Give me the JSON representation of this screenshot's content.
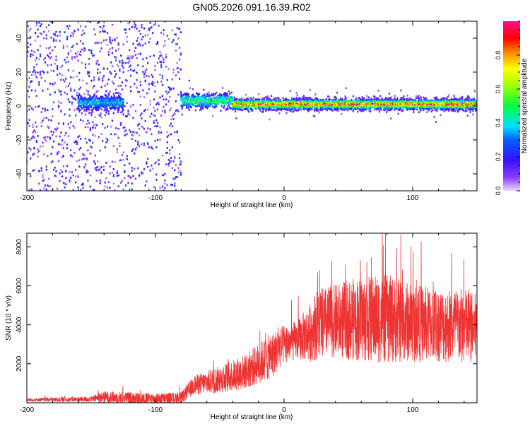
{
  "title": "GN05.2026.091.16.39.R02",
  "chart_data": [
    {
      "type": "heatmap",
      "name": "spectrogram",
      "xlabel": "Height of straight line (km)",
      "ylabel": "Frequency (Hz)",
      "xlim": [
        -200,
        150
      ],
      "ylim": [
        -50,
        50
      ],
      "xticks": [
        -200,
        -100,
        0,
        100
      ],
      "yticks": [
        -40,
        -20,
        0,
        20,
        40
      ],
      "colorbar": {
        "label": "Normalized spectral amplitude",
        "range": [
          0.0,
          1.0
        ],
        "ticks": [
          "0.0",
          "0.2",
          "0.4",
          "0.6",
          "0.8"
        ]
      },
      "regions": [
        {
          "x_range": [
            -200,
            -80
          ],
          "description": "broadband noise",
          "freq_range": [
            -50,
            50
          ],
          "amplitude": 0.25
        },
        {
          "x_range": [
            -160,
            -125
          ],
          "description": "weak line",
          "freq_center": 2,
          "amplitude": 0.3
        },
        {
          "x_range": [
            -80,
            -40
          ],
          "description": "signal line",
          "freq_center": 3,
          "amplitude": 0.45
        },
        {
          "x_range": [
            -40,
            150
          ],
          "description": "strong narrow line",
          "freq_center": 1,
          "amplitude": 0.85
        }
      ]
    },
    {
      "type": "line",
      "name": "snr",
      "xlabel": "Height of straight line (km)",
      "ylabel": "SNR (10 * v/v)",
      "xlim": [
        -200,
        150
      ],
      "ylim": [
        0,
        8700
      ],
      "xticks": [
        -200,
        -100,
        0,
        100
      ],
      "yticks": [
        2000,
        4000,
        6000,
        8000
      ],
      "color": "#ee3333",
      "envelope": {
        "x": [
          -200,
          -150,
          -140,
          -100,
          -80,
          -70,
          -50,
          -30,
          -10,
          0,
          10,
          20,
          25,
          40,
          60,
          80,
          100,
          120,
          140,
          150
        ],
        "mean": [
          150,
          180,
          300,
          200,
          250,
          900,
          1200,
          1600,
          2400,
          3000,
          3200,
          3600,
          4000,
          4200,
          4300,
          4300,
          4100,
          4000,
          3900,
          3800
        ],
        "spread": [
          80,
          150,
          300,
          300,
          300,
          500,
          700,
          900,
          1200,
          1000,
          1000,
          1500,
          1800,
          1900,
          2200,
          2300,
          2000,
          1900,
          2000,
          1800
        ]
      }
    }
  ]
}
